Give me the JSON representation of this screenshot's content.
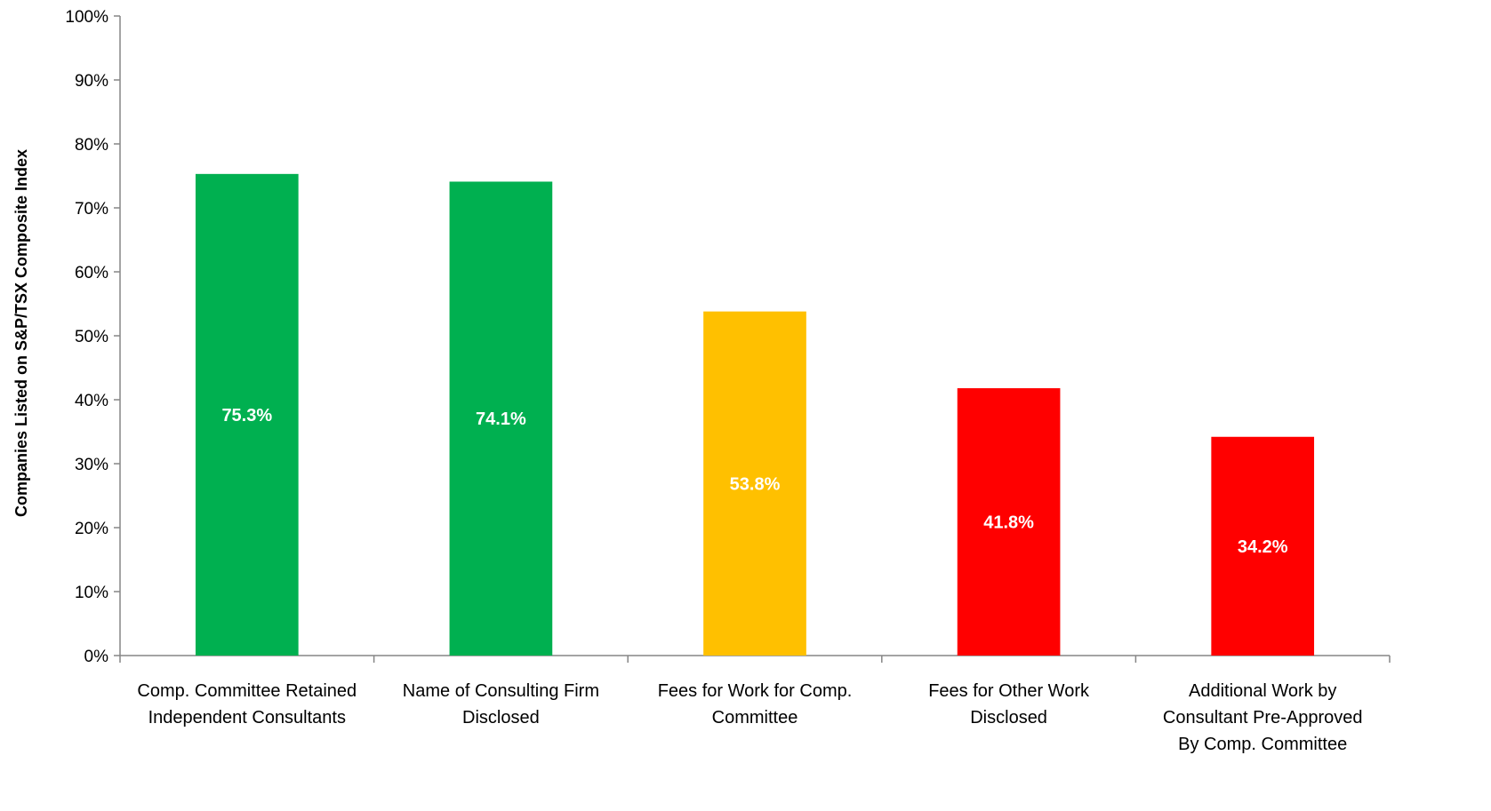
{
  "chart_data": {
    "type": "bar",
    "title": "",
    "xlabel": "",
    "ylabel": "Companies Listed on S&P/TSX Composite Index",
    "ylim": [
      0,
      100
    ],
    "y_ticks": [
      "0%",
      "10%",
      "20%",
      "30%",
      "40%",
      "50%",
      "60%",
      "70%",
      "80%",
      "90%",
      "100%"
    ],
    "grid": false,
    "categories": [
      [
        "Comp. Committee Retained",
        "Independent Consultants"
      ],
      [
        "Name of Consulting Firm",
        "Disclosed"
      ],
      [
        "Fees for Work for Comp.",
        "Committee"
      ],
      [
        "Fees for Other Work",
        "Disclosed"
      ],
      [
        "Additional Work by",
        "Consultant Pre-Approved",
        "By Comp. Committee"
      ]
    ],
    "values": [
      75.3,
      74.1,
      53.8,
      41.8,
      34.2
    ],
    "data_labels": [
      "75.3%",
      "74.1%",
      "53.8%",
      "41.8%",
      "34.2%"
    ],
    "colors": [
      "#00b050",
      "#00b050",
      "#ffc000",
      "#ff0000",
      "#ff0000"
    ]
  }
}
